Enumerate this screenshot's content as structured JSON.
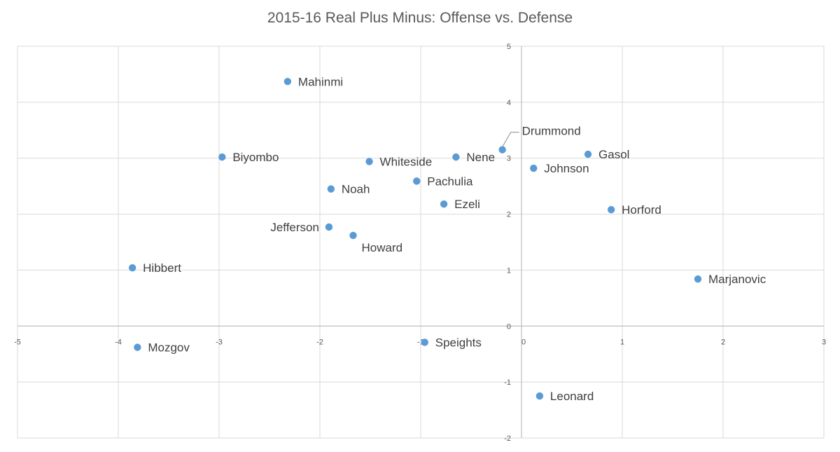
{
  "chart_data": {
    "type": "scatter",
    "title": "2015-16 Real Plus Minus: Offense vs. Defense",
    "xlabel": "",
    "ylabel": "",
    "xlim": [
      -5,
      3
    ],
    "ylim": [
      -2,
      5
    ],
    "xticks": [
      "-5",
      "-4",
      "-3",
      "-2",
      "-1",
      "0",
      "1",
      "2",
      "3"
    ],
    "yticks": [
      "-2",
      "-1",
      "0",
      "1",
      "2",
      "3",
      "4",
      "5"
    ],
    "grid": true,
    "legend": "none",
    "color": "#5b9bd5",
    "points": [
      {
        "label": "Mahinmi",
        "x": -2.32,
        "y": 4.37
      },
      {
        "label": "Drummond",
        "x": -0.19,
        "y": 3.15
      },
      {
        "label": "Biyombo",
        "x": -2.97,
        "y": 3.02
      },
      {
        "label": "Nene",
        "x": -0.65,
        "y": 3.02
      },
      {
        "label": "Gasol",
        "x": 0.66,
        "y": 3.07
      },
      {
        "label": "Whiteside",
        "x": -1.51,
        "y": 2.94
      },
      {
        "label": "Johnson",
        "x": 0.12,
        "y": 2.82
      },
      {
        "label": "Pachulia",
        "x": -1.04,
        "y": 2.59
      },
      {
        "label": "Noah",
        "x": -1.89,
        "y": 2.45
      },
      {
        "label": "Ezeli",
        "x": -0.77,
        "y": 2.18
      },
      {
        "label": "Horford",
        "x": 0.89,
        "y": 2.08
      },
      {
        "label": "Jefferson",
        "x": -1.91,
        "y": 1.77
      },
      {
        "label": "Howard",
        "x": -1.67,
        "y": 1.62
      },
      {
        "label": "Hibbert",
        "x": -3.86,
        "y": 1.04
      },
      {
        "label": "Marjanovic",
        "x": 1.75,
        "y": 0.84
      },
      {
        "label": "Speights",
        "x": -0.96,
        "y": -0.29
      },
      {
        "label": "Mozgov",
        "x": -3.81,
        "y": -0.38
      },
      {
        "label": "Leonard",
        "x": 0.18,
        "y": -1.25
      }
    ]
  }
}
